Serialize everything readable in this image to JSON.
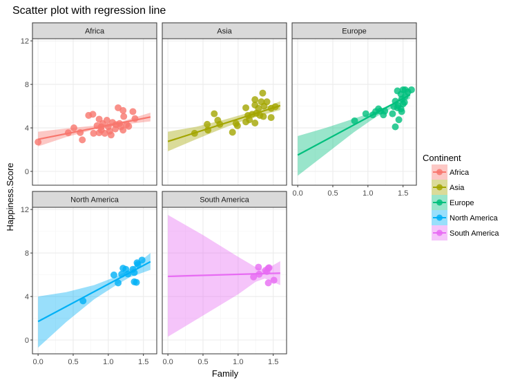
{
  "chart_data": {
    "type": "scatter",
    "title": "Scatter plot with regression line",
    "xlabel": "Family",
    "ylabel": "Happiness.Score",
    "xlim": [
      -0.08,
      1.69
    ],
    "ylim": [
      -1.27,
      12.2
    ],
    "x_ticks": [
      0.0,
      0.5,
      1.0,
      1.5
    ],
    "x_tick_labels": [
      "0.0",
      "0.5",
      "1.0",
      "1.5"
    ],
    "y_ticks": [
      0,
      4,
      8,
      12
    ],
    "y_tick_labels": [
      "0",
      "4",
      "8",
      "12"
    ],
    "grid": true,
    "legend": {
      "title": "Continent",
      "placement": "right"
    },
    "facets": [
      {
        "name": "Africa",
        "color": "#F8766D",
        "fit": [
          [
            0,
            2.95
          ],
          [
            1.6,
            5.0
          ]
        ],
        "band": {
          "x": [
            0,
            0.4,
            0.8,
            1.0,
            1.2,
            1.6
          ],
          "lower": [
            2.3,
            3.15,
            3.85,
            4.05,
            4.3,
            4.6
          ],
          "upper": [
            3.65,
            3.95,
            4.2,
            4.4,
            4.6,
            5.4
          ]
        },
        "points": [
          [
            0,
            2.7
          ],
          [
            0.43,
            3.55
          ],
          [
            0.51,
            4.0
          ],
          [
            0.6,
            3.57
          ],
          [
            0.63,
            2.9
          ],
          [
            0.72,
            5.15
          ],
          [
            0.78,
            5.25
          ],
          [
            0.79,
            3.5
          ],
          [
            0.87,
            4.8
          ],
          [
            0.87,
            3.55
          ],
          [
            0.9,
            4.1
          ],
          [
            0.95,
            3.5
          ],
          [
            0.98,
            4.7
          ],
          [
            1.0,
            4.1
          ],
          [
            1.04,
            3.35
          ],
          [
            1.06,
            4.5
          ],
          [
            1.1,
            3.9
          ],
          [
            1.14,
            5.85
          ],
          [
            1.16,
            4.4
          ],
          [
            1.21,
            5.6
          ],
          [
            1.22,
            5.05
          ],
          [
            1.21,
            3.8
          ],
          [
            1.26,
            4.3
          ],
          [
            1.29,
            4.15
          ],
          [
            1.35,
            5.5
          ],
          [
            1.38,
            4.85
          ],
          [
            0.84,
            4.2
          ],
          [
            0.92,
            4.4
          ],
          [
            1.11,
            4.3
          ],
          [
            1.18,
            4.1
          ],
          [
            1.02,
            3.7
          ],
          [
            0.9,
            3.8
          ]
        ]
      },
      {
        "name": "Asia",
        "color": "#A3A500",
        "fit": [
          [
            0,
            2.75
          ],
          [
            1.6,
            6.05
          ]
        ],
        "band": {
          "x": [
            0,
            0.4,
            0.8,
            1.1,
            1.3,
            1.6
          ],
          "lower": [
            1.85,
            2.95,
            4.0,
            4.7,
            5.1,
            5.65
          ],
          "upper": [
            3.65,
            4.1,
            4.75,
            5.3,
            5.65,
            6.45
          ]
        },
        "points": [
          [
            0.38,
            3.5
          ],
          [
            0.56,
            4.33
          ],
          [
            0.57,
            3.8
          ],
          [
            0.66,
            5.3
          ],
          [
            0.71,
            4.7
          ],
          [
            0.74,
            4.33
          ],
          [
            0.92,
            3.6
          ],
          [
            0.97,
            4.4
          ],
          [
            0.99,
            4.2
          ],
          [
            1.11,
            5.85
          ],
          [
            1.11,
            4.55
          ],
          [
            1.14,
            5.15
          ],
          [
            1.16,
            4.75
          ],
          [
            1.24,
            6.6
          ],
          [
            1.24,
            6.1
          ],
          [
            1.24,
            4.45
          ],
          [
            1.26,
            5.35
          ],
          [
            1.29,
            5.8
          ],
          [
            1.35,
            7.2
          ],
          [
            1.33,
            6.4
          ],
          [
            1.36,
            5.05
          ],
          [
            1.41,
            6.4
          ],
          [
            1.47,
            4.95
          ],
          [
            1.47,
            5.8
          ],
          [
            1.53,
            5.95
          ],
          [
            1.2,
            5.25
          ],
          [
            1.31,
            5.15
          ],
          [
            1.37,
            6.0
          ]
        ]
      },
      {
        "name": "Europe",
        "color": "#00BF7D",
        "fit": [
          [
            0,
            1.5
          ],
          [
            1.6,
            7.05
          ]
        ],
        "band": {
          "x": [
            0,
            0.4,
            0.8,
            1.1,
            1.35,
            1.6
          ],
          "lower": [
            -0.4,
            1.6,
            3.6,
            4.95,
            5.85,
            6.7
          ],
          "upper": [
            3.25,
            4.0,
            4.85,
            5.5,
            6.25,
            7.45
          ]
        },
        "points": [
          [
            0.81,
            4.65
          ],
          [
            0.97,
            5.3
          ],
          [
            1.07,
            5.2
          ],
          [
            1.15,
            5.75
          ],
          [
            1.18,
            5.55
          ],
          [
            1.22,
            5.2
          ],
          [
            1.24,
            5.55
          ],
          [
            1.35,
            5.3
          ],
          [
            1.39,
            4.1
          ],
          [
            1.44,
            4.75
          ],
          [
            1.42,
            7.4
          ],
          [
            1.39,
            6.45
          ],
          [
            1.43,
            6.05
          ],
          [
            1.47,
            7.1
          ],
          [
            1.5,
            7.5
          ],
          [
            1.53,
            7.5
          ],
          [
            1.57,
            7.3
          ],
          [
            1.62,
            7.5
          ],
          [
            1.48,
            6.65
          ],
          [
            1.52,
            6.35
          ],
          [
            1.47,
            5.75
          ],
          [
            1.5,
            6.2
          ],
          [
            1.42,
            5.85
          ],
          [
            1.53,
            6.9
          ],
          [
            1.37,
            5.95
          ],
          [
            1.48,
            5.5
          ],
          [
            1.11,
            5.5
          ]
        ]
      },
      {
        "name": "North America",
        "color": "#00B0F6",
        "fit": [
          [
            0,
            1.7
          ],
          [
            1.6,
            7.2
          ]
        ],
        "band": {
          "x": [
            0,
            0.4,
            0.8,
            1.1,
            1.3,
            1.6
          ],
          "lower": [
            -0.7,
            1.65,
            3.75,
            5.0,
            5.75,
            6.45
          ],
          "upper": [
            4.0,
            4.4,
            5.05,
            5.8,
            6.45,
            8.0
          ]
        },
        "points": [
          [
            0.64,
            3.6
          ],
          [
            1.08,
            5.98
          ],
          [
            1.14,
            5.25
          ],
          [
            1.19,
            6.05
          ],
          [
            1.21,
            6.6
          ],
          [
            1.25,
            6.5
          ],
          [
            1.28,
            6.07
          ],
          [
            1.35,
            6.5
          ],
          [
            1.37,
            6.2
          ],
          [
            1.37,
            5.35
          ],
          [
            1.4,
            5.3
          ],
          [
            1.41,
            7.1
          ],
          [
            1.48,
            7.35
          ],
          [
            1.42,
            6.95
          ]
        ]
      },
      {
        "name": "South America",
        "color": "#E76BF3",
        "fit": [
          [
            0,
            5.85
          ],
          [
            1.6,
            6.15
          ]
        ],
        "band": {
          "x": [
            0,
            0.5,
            1.0,
            1.25,
            1.38,
            1.6
          ],
          "lower": [
            0.3,
            2.25,
            4.2,
            5.35,
            5.65,
            5.05
          ],
          "upper": [
            11.5,
            9.65,
            7.65,
            6.7,
            6.45,
            7.25
          ]
        },
        "points": [
          [
            1.22,
            5.8
          ],
          [
            1.29,
            6.7
          ],
          [
            1.3,
            6.05
          ],
          [
            1.39,
            6.4
          ],
          [
            1.43,
            6.6
          ],
          [
            1.44,
            6.65
          ],
          [
            1.43,
            5.25
          ],
          [
            1.51,
            5.5
          ],
          [
            1.41,
            6.3
          ]
        ]
      }
    ]
  }
}
